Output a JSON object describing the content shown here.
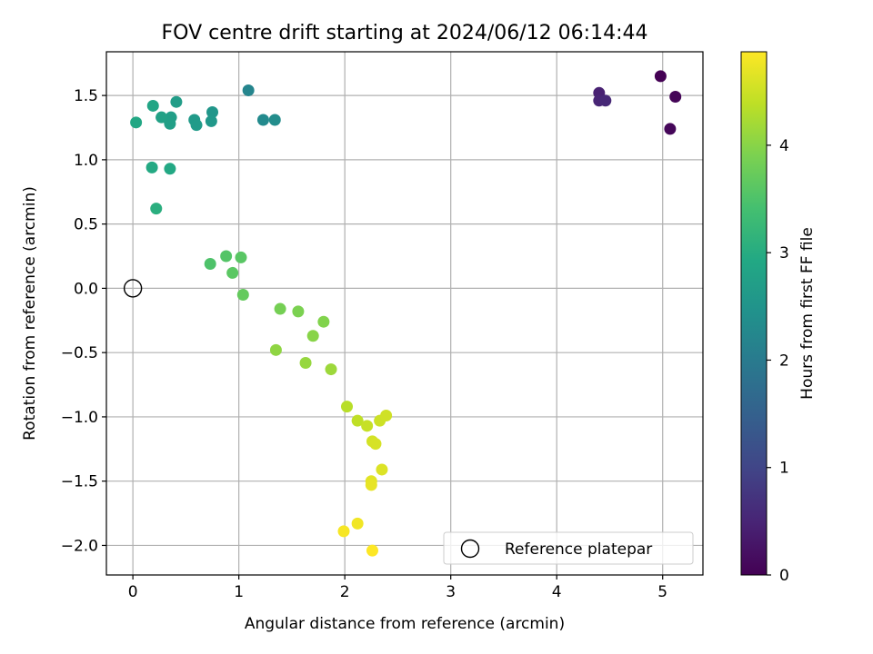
{
  "chart_data": {
    "type": "scatter",
    "title": "FOV centre drift starting at 2024/06/12 06:14:44",
    "xlabel": "Angular distance from reference (arcmin)",
    "ylabel": "Rotation from reference (arcmin)",
    "xlim": [
      -0.25,
      5.38
    ],
    "ylim": [
      -2.23,
      1.84
    ],
    "x_ticks": [
      0,
      1,
      2,
      3,
      4,
      5
    ],
    "x_tick_labels": [
      "0",
      "1",
      "2",
      "3",
      "4",
      "5"
    ],
    "y_ticks": [
      -2.0,
      -1.5,
      -1.0,
      -0.5,
      0.0,
      0.5,
      1.0,
      1.5
    ],
    "y_tick_labels": [
      "−2.0",
      "−1.5",
      "−1.0",
      "−0.5",
      "0.0",
      "0.5",
      "1.0",
      "1.5"
    ],
    "grid": true,
    "legend": {
      "placement": "lower-right",
      "entries": [
        "Reference platepar"
      ]
    },
    "reference_point": {
      "x": 0.0,
      "y": 0.0,
      "label": "Reference platepar"
    },
    "colorbar": {
      "label": "Hours from first FF file",
      "range": [
        0,
        4.87
      ],
      "ticks": [
        0,
        1,
        2,
        3,
        4
      ],
      "tick_labels": [
        "0",
        "1",
        "2",
        "3",
        "4"
      ],
      "colormap": "viridis"
    },
    "points": [
      {
        "x": 4.98,
        "y": 1.65,
        "hours": 0.0
      },
      {
        "x": 5.12,
        "y": 1.49,
        "hours": 0.05
      },
      {
        "x": 5.07,
        "y": 1.24,
        "hours": 0.08
      },
      {
        "x": 4.4,
        "y": 1.52,
        "hours": 0.45
      },
      {
        "x": 4.4,
        "y": 1.46,
        "hours": 0.5
      },
      {
        "x": 4.46,
        "y": 1.46,
        "hours": 0.55
      },
      {
        "x": 1.09,
        "y": 1.54,
        "hours": 2.2
      },
      {
        "x": 1.23,
        "y": 1.31,
        "hours": 2.3
      },
      {
        "x": 1.34,
        "y": 1.31,
        "hours": 2.35
      },
      {
        "x": 0.75,
        "y": 1.37,
        "hours": 2.55
      },
      {
        "x": 0.74,
        "y": 1.3,
        "hours": 2.58
      },
      {
        "x": 0.58,
        "y": 1.31,
        "hours": 2.62
      },
      {
        "x": 0.6,
        "y": 1.27,
        "hours": 2.64
      },
      {
        "x": 0.41,
        "y": 1.45,
        "hours": 2.68
      },
      {
        "x": 0.36,
        "y": 1.33,
        "hours": 2.7
      },
      {
        "x": 0.34,
        "y": 1.31,
        "hours": 2.72
      },
      {
        "x": 0.35,
        "y": 1.28,
        "hours": 2.74
      },
      {
        "x": 0.27,
        "y": 1.33,
        "hours": 2.78
      },
      {
        "x": 0.19,
        "y": 1.42,
        "hours": 2.85
      },
      {
        "x": 0.03,
        "y": 1.29,
        "hours": 2.9
      },
      {
        "x": 0.35,
        "y": 0.93,
        "hours": 2.93
      },
      {
        "x": 0.18,
        "y": 0.94,
        "hours": 2.95
      },
      {
        "x": 0.22,
        "y": 0.62,
        "hours": 3.05
      },
      {
        "x": 0.73,
        "y": 0.19,
        "hours": 3.5
      },
      {
        "x": 0.88,
        "y": 0.25,
        "hours": 3.55
      },
      {
        "x": 1.02,
        "y": 0.24,
        "hours": 3.6
      },
      {
        "x": 0.94,
        "y": 0.12,
        "hours": 3.62
      },
      {
        "x": 1.04,
        "y": -0.05,
        "hours": 3.7
      },
      {
        "x": 1.39,
        "y": -0.16,
        "hours": 3.85
      },
      {
        "x": 1.56,
        "y": -0.18,
        "hours": 3.9
      },
      {
        "x": 1.8,
        "y": -0.26,
        "hours": 3.95
      },
      {
        "x": 1.7,
        "y": -0.37,
        "hours": 4.0
      },
      {
        "x": 1.35,
        "y": -0.48,
        "hours": 4.05
      },
      {
        "x": 1.63,
        "y": -0.58,
        "hours": 4.1
      },
      {
        "x": 1.87,
        "y": -0.63,
        "hours": 4.15
      },
      {
        "x": 2.02,
        "y": -0.92,
        "hours": 4.35
      },
      {
        "x": 2.12,
        "y": -1.03,
        "hours": 4.4
      },
      {
        "x": 2.21,
        "y": -1.07,
        "hours": 4.45
      },
      {
        "x": 2.33,
        "y": -1.03,
        "hours": 4.5
      },
      {
        "x": 2.39,
        "y": -0.99,
        "hours": 4.52
      },
      {
        "x": 2.26,
        "y": -1.19,
        "hours": 4.55
      },
      {
        "x": 2.29,
        "y": -1.21,
        "hours": 4.57
      },
      {
        "x": 2.35,
        "y": -1.41,
        "hours": 4.62
      },
      {
        "x": 2.25,
        "y": -1.5,
        "hours": 4.66
      },
      {
        "x": 2.25,
        "y": -1.53,
        "hours": 4.7
      },
      {
        "x": 2.12,
        "y": -1.83,
        "hours": 4.78
      },
      {
        "x": 1.99,
        "y": -1.89,
        "hours": 4.82
      },
      {
        "x": 2.26,
        "y": -2.04,
        "hours": 4.87
      }
    ]
  }
}
